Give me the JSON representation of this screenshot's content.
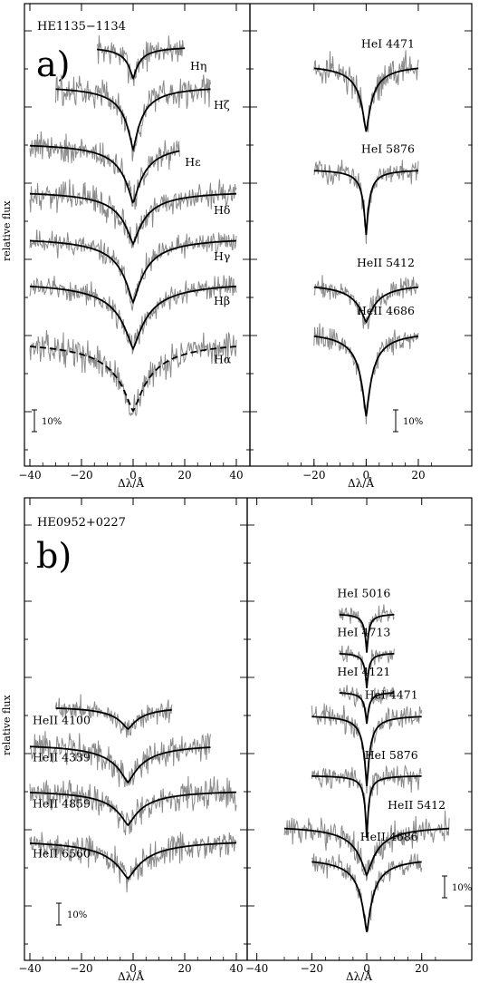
{
  "chart_data": [
    {
      "type": "line",
      "panel_label": "a)",
      "star": "HE1135−1134",
      "ylabel": "relative flux",
      "xlabel": "Δλ/Å",
      "scale_bar": "10%",
      "subplots": [
        {
          "side": "left",
          "xlim": [
            -40,
            40
          ],
          "xticks": [
            "−40",
            "−20",
            "0",
            "20",
            "40"
          ],
          "lines": [
            {
              "label": "Hη",
              "x_range": [
                -14,
                20
              ],
              "continuum": 2.86,
              "depth": 0.18,
              "width": 2.5,
              "core": 0.0,
              "noise": 0.05,
              "dashed": false
            },
            {
              "label": "Hζ",
              "x_range": [
                -30,
                30
              ],
              "continuum": 2.64,
              "depth": 0.36,
              "width": 3.5,
              "core": 0.0,
              "noise": 0.05,
              "dashed": false
            },
            {
              "label": "Hε",
              "x_range": [
                -40,
                18
              ],
              "continuum": 2.32,
              "depth": 0.34,
              "width": 4.5,
              "core": 0.0,
              "noise": 0.05,
              "dashed": false
            },
            {
              "label": "Hδ",
              "x_range": [
                -40,
                40
              ],
              "continuum": 2.05,
              "depth": 0.3,
              "width": 5.0,
              "core": 0.0,
              "noise": 0.05,
              "dashed": false
            },
            {
              "label": "Hγ",
              "x_range": [
                -40,
                40
              ],
              "continuum": 1.79,
              "depth": 0.37,
              "width": 5.0,
              "core": 0.0,
              "noise": 0.04,
              "dashed": false
            },
            {
              "label": "Hβ",
              "x_range": [
                -40,
                40
              ],
              "continuum": 1.54,
              "depth": 0.38,
              "width": 6.0,
              "core": 0.0,
              "noise": 0.04,
              "dashed": false
            },
            {
              "label": "Hα",
              "x_range": [
                -40,
                40
              ],
              "continuum": 1.21,
              "depth": 0.4,
              "width": 7.0,
              "core": 0.0,
              "noise": 0.05,
              "dashed": true
            }
          ]
        },
        {
          "side": "right",
          "xlim": [
            -30,
            28
          ],
          "xticks": [
            "−20",
            "0",
            "20"
          ],
          "lines": [
            {
              "label": "HeI 4471",
              "x_range": [
                -20,
                20
              ],
              "continuum": 2.76,
              "depth": 0.38,
              "width": 2.5,
              "core": 0.0,
              "noise": 0.05,
              "dashed": false
            },
            {
              "label": "HeI 5876",
              "x_range": [
                -20,
                20
              ],
              "continuum": 2.17,
              "depth": 0.37,
              "width": 1.2,
              "core": 0.0,
              "noise": 0.04,
              "dashed": false
            },
            {
              "label": "HeII 5412",
              "x_range": [
                -20,
                20
              ],
              "continuum": 1.53,
              "depth": 0.22,
              "width": 4.0,
              "core": 0.0,
              "noise": 0.04,
              "dashed": false
            },
            {
              "label": "HeII 4686",
              "x_range": [
                -20,
                20
              ],
              "continuum": 1.26,
              "depth": 0.48,
              "width": 2.5,
              "core": 0.0,
              "noise": 0.04,
              "dashed": false
            }
          ]
        }
      ]
    },
    {
      "type": "line",
      "panel_label": "b)",
      "star": "HE0952+0227",
      "ylabel": "relative flux",
      "xlabel": "Δλ/Å",
      "scale_bar": "10%",
      "subplots": [
        {
          "side": "left",
          "xlim": [
            -40,
            40
          ],
          "xticks": [
            "−40",
            "−20",
            "0",
            "20",
            "40"
          ],
          "lines": [
            {
              "label": "HeII 4100",
              "x_range": [
                -30,
                15
              ],
              "continuum": 1.93,
              "depth": 0.13,
              "width": 5.0,
              "core": -2.0,
              "noise": 0.04,
              "dashed": false
            },
            {
              "label": "HeII 4339",
              "x_range": [
                -40,
                30
              ],
              "continuum": 1.72,
              "depth": 0.22,
              "width": 6.0,
              "core": -2.0,
              "noise": 0.05,
              "dashed": false
            },
            {
              "label": "HeII 4859",
              "x_range": [
                -40,
                40
              ],
              "continuum": 1.46,
              "depth": 0.2,
              "width": 6.0,
              "core": -2.0,
              "noise": 0.05,
              "dashed": false
            },
            {
              "label": "HeII 6560",
              "x_range": [
                -40,
                40
              ],
              "continuum": 1.18,
              "depth": 0.22,
              "width": 7.0,
              "core": -2.0,
              "noise": 0.05,
              "dashed": false
            }
          ]
        },
        {
          "side": "right",
          "xlim": [
            -30,
            28
          ],
          "xticks": [
            "−40",
            "−20",
            "0",
            "20"
          ],
          "lines": [
            {
              "label": "HeI 5016",
              "x_range": [
                -10,
                10
              ],
              "continuum": 2.45,
              "depth": 0.22,
              "width": 0.7,
              "core": 0.0,
              "noise": 0.03,
              "dashed": false
            },
            {
              "label": "HeI 4713",
              "x_range": [
                -10,
                10
              ],
              "continuum": 2.23,
              "depth": 0.2,
              "width": 0.7,
              "core": 0.0,
              "noise": 0.03,
              "dashed": false
            },
            {
              "label": "HeI 4121",
              "x_range": [
                -10,
                10
              ],
              "continuum": 2.01,
              "depth": 0.18,
              "width": 0.8,
              "core": 0.0,
              "noise": 0.03,
              "dashed": false
            },
            {
              "label": "HeI 4471",
              "x_range": [
                -20,
                20
              ],
              "continuum": 1.88,
              "depth": 0.4,
              "width": 1.2,
              "core": 0.0,
              "noise": 0.04,
              "dashed": false
            },
            {
              "label": "HeI 5876",
              "x_range": [
                -20,
                20
              ],
              "continuum": 1.54,
              "depth": 0.35,
              "width": 0.7,
              "core": 0.0,
              "noise": 0.04,
              "dashed": false
            },
            {
              "label": "HeII 5412",
              "x_range": [
                -30,
                30
              ],
              "continuum": 1.26,
              "depth": 0.28,
              "width": 4.0,
              "core": 0.0,
              "noise": 0.05,
              "dashed": false
            },
            {
              "label": "HeII 4686",
              "x_range": [
                -20,
                20
              ],
              "continuum": 1.08,
              "depth": 0.42,
              "width": 2.5,
              "core": 0.0,
              "noise": 0.04,
              "dashed": false
            }
          ]
        }
      ]
    }
  ],
  "colors": {
    "observed": "#8a8a8a",
    "model": "#000000",
    "frame": "#000000"
  }
}
